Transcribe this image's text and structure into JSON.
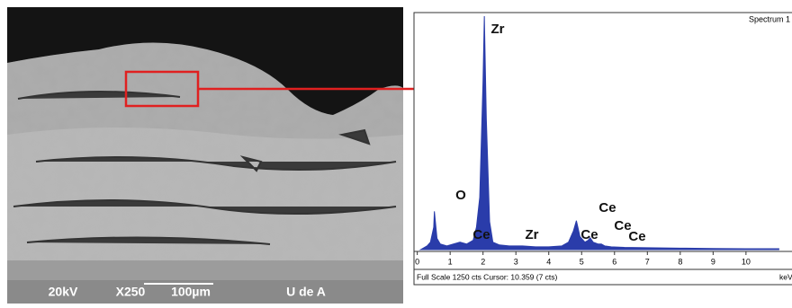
{
  "sem": {
    "voltage": "20kV",
    "magnification": "X250",
    "scale_bar": "100µm",
    "institution": "U de A"
  },
  "chart_data": {
    "type": "area",
    "title": "Spectrum 1",
    "footer": "Full Scale 1250 cts Cursor: 10.359  (7 cts)",
    "x_label": "keV",
    "x": [
      0.1,
      0.3,
      0.4,
      0.5,
      0.52,
      0.6,
      0.7,
      0.9,
      1.1,
      1.3,
      1.5,
      1.7,
      1.8,
      1.9,
      2.0,
      2.04,
      2.1,
      2.2,
      2.3,
      2.5,
      2.8,
      3.2,
      3.6,
      4.0,
      4.4,
      4.6,
      4.75,
      4.84,
      4.95,
      5.1,
      5.2,
      5.26,
      5.35,
      5.5,
      5.6,
      5.7,
      5.9,
      6.3,
      7,
      8,
      9,
      10,
      11
    ],
    "values": [
      0,
      20,
      40,
      120,
      205,
      60,
      30,
      20,
      30,
      40,
      30,
      50,
      120,
      280,
      900,
      1250,
      700,
      150,
      40,
      25,
      20,
      20,
      15,
      15,
      20,
      40,
      100,
      155,
      70,
      40,
      50,
      63,
      40,
      30,
      30,
      20,
      15,
      12,
      10,
      8,
      6,
      5,
      5
    ],
    "color": "#2a3caa",
    "xlim": [
      -0.1,
      11.4
    ],
    "xticks": [
      0,
      1,
      2,
      3,
      4,
      5,
      6,
      7,
      8,
      9,
      10
    ],
    "ylim": [
      0,
      1250
    ],
    "peak_labels": [
      "Zr",
      "O",
      "Ce",
      "Zr",
      "Ce",
      "Ce",
      "Ce",
      "Ce"
    ]
  }
}
